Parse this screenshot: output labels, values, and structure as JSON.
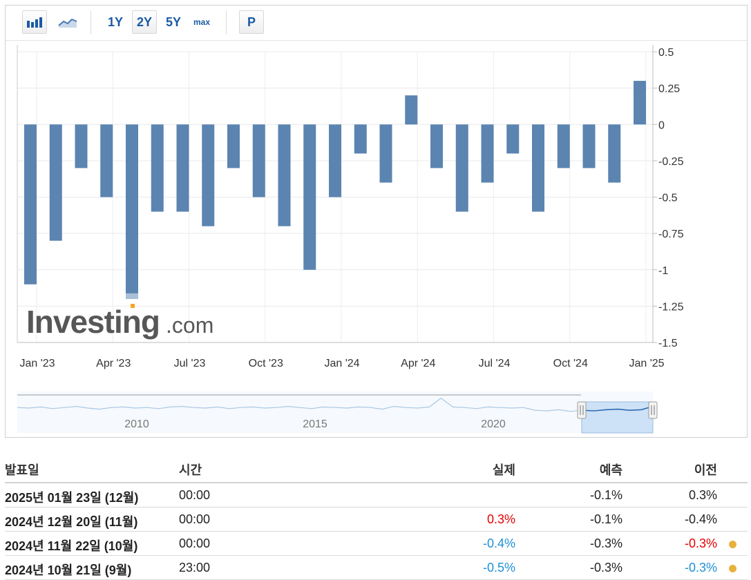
{
  "toolbar": {
    "bar_icon": "bar-chart-icon",
    "line_icon": "area-chart-icon",
    "periods": [
      "1Y",
      "2Y",
      "5Y",
      "max"
    ],
    "active_period": "2Y",
    "p_label": "P"
  },
  "watermark": {
    "brand": "Investing",
    "suffix": ".com"
  },
  "chart_data": {
    "type": "bar",
    "categories": [
      "Jan '23",
      "Feb '23",
      "Mar '23",
      "Apr '23",
      "May '23",
      "Jun '23",
      "Jul '23",
      "Aug '23",
      "Sep '23",
      "Oct '23",
      "Nov '23",
      "Dec '23",
      "Jan '24",
      "Feb '24",
      "Mar '24",
      "Apr '24",
      "May '24",
      "Jun '24",
      "Jul '24",
      "Aug '24",
      "Sep '24",
      "Oct '24",
      "Nov '24",
      "Dec '24",
      "Jan '25"
    ],
    "values": [
      -1.1,
      -0.8,
      -0.3,
      -0.5,
      -1.2,
      -0.6,
      -0.6,
      -0.7,
      -0.3,
      -0.5,
      -0.7,
      -1.0,
      -0.5,
      -0.2,
      -0.4,
      0.2,
      -0.3,
      -0.6,
      -0.4,
      -0.2,
      -0.6,
      -0.3,
      -0.3,
      -0.4,
      0.3
    ],
    "y_ticks": [
      "0.5",
      "0.25",
      "0",
      "-0.25",
      "-0.5",
      "-0.75",
      "-1",
      "-1.25",
      "-1.5"
    ],
    "x_ticks": [
      "Jan '23",
      "Apr '23",
      "Jul '23",
      "Oct '23",
      "Jan '24",
      "Apr '24",
      "Jul '24",
      "Oct '24",
      "Jan '25"
    ],
    "ylim": [
      -1.5,
      0.5
    ],
    "grid": true,
    "bar_color": "#5b84b1",
    "highlight_bar_index": 4,
    "navigator_labels": [
      "2010",
      "2015",
      "2020"
    ],
    "navigator_series": [
      0.1,
      0.0,
      0.2,
      -0.1,
      0.1,
      0.3,
      0.0,
      -0.2,
      0.1,
      0.2,
      0.0,
      0.1,
      -0.1,
      0.2,
      0.3,
      0.1,
      0.0,
      0.2,
      -0.1,
      0.1,
      0.2,
      0.0,
      0.1,
      0.3,
      0.1,
      -0.1,
      0.2,
      0.1,
      0.0,
      0.2,
      0.1,
      -0.2,
      0.3,
      0.1,
      0.0,
      0.2,
      1.8,
      0.2,
      0.1,
      -0.1,
      0.2,
      0.1,
      0.0,
      0.1,
      -0.4,
      -0.5,
      -0.3,
      -0.6,
      -0.4,
      -0.5,
      -0.3,
      -0.2,
      -0.4,
      -0.3,
      0.3
    ]
  },
  "table": {
    "headers": {
      "date": "발표일",
      "time": "시간",
      "actual": "실제",
      "forecast": "예측",
      "previous": "이전"
    },
    "rows": [
      {
        "date": "2025년 01월 23일 (12월)",
        "time": "00:00",
        "actual": "",
        "actual_color": "#222222",
        "forecast": "-0.1%",
        "previous": "0.3%",
        "previous_color": "#222222",
        "dot": false
      },
      {
        "date": "2024년 12월 20일 (11월)",
        "time": "00:00",
        "actual": "0.3%",
        "actual_color": "#e60000",
        "forecast": "-0.1%",
        "previous": "-0.4%",
        "previous_color": "#222222",
        "dot": false
      },
      {
        "date": "2024년 11월 22일 (10월)",
        "time": "00:00",
        "actual": "-0.4%",
        "actual_color": "#1e90d8",
        "forecast": "-0.3%",
        "previous": "-0.3%",
        "previous_color": "#e60000",
        "dot": true
      },
      {
        "date": "2024년 10월 21일 (9월)",
        "time": "23:00",
        "actual": "-0.5%",
        "actual_color": "#1e90d8",
        "forecast": "-0.3%",
        "previous": "-0.3%",
        "previous_color": "#1e90d8",
        "dot": true
      }
    ],
    "dot_color": "#e8b13c"
  }
}
